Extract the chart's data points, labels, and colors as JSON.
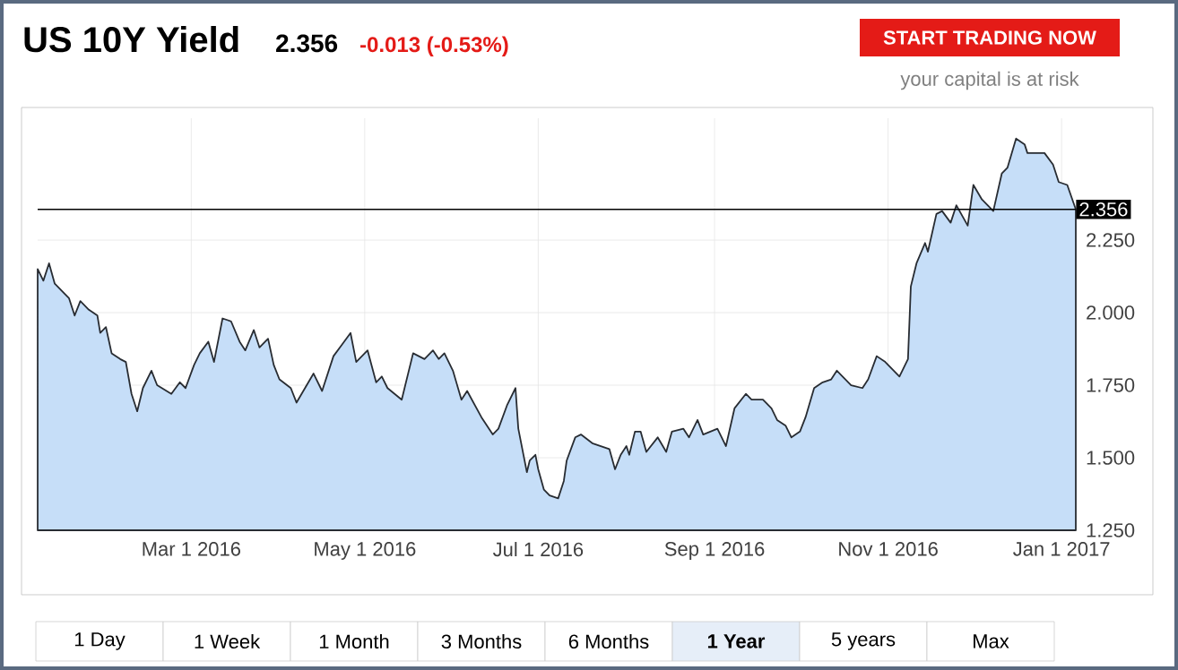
{
  "chart_data": {
    "type": "area",
    "title": "US 10Y Yield",
    "subtitle": "2.356",
    "annotations": [
      "-0.013 (-0.53%)",
      "START TRADING NOW",
      "your capital is at risk",
      "1 Day",
      "1 Week",
      "1 Month",
      "3 Months",
      "6 Months",
      "1 Year",
      "5 years",
      "Max"
    ],
    "color": "#c6def8",
    "grid": true,
    "x": [
      "2016-01-07",
      "2016-01-09",
      "2016-01-11",
      "2016-01-13",
      "2016-01-15",
      "2016-01-18",
      "2016-01-20",
      "2016-01-22",
      "2016-01-25",
      "2016-01-28",
      "2016-01-29",
      "2016-01-31",
      "2016-02-02",
      "2016-02-05",
      "2016-02-07",
      "2016-02-09",
      "2016-02-11",
      "2016-02-13",
      "2016-02-16",
      "2016-02-18",
      "2016-02-23",
      "2016-02-26",
      "2016-02-28",
      "2016-03-02",
      "2016-03-04",
      "2016-03-07",
      "2016-03-09",
      "2016-03-12",
      "2016-03-15",
      "2016-03-18",
      "2016-03-20",
      "2016-03-23",
      "2016-03-25",
      "2016-03-28",
      "2016-03-30",
      "2016-04-01",
      "2016-04-05",
      "2016-04-07",
      "2016-04-10",
      "2016-04-13",
      "2016-04-16",
      "2016-04-20",
      "2016-04-23",
      "2016-04-26",
      "2016-04-28",
      "2016-05-02",
      "2016-05-05",
      "2016-05-07",
      "2016-05-09",
      "2016-05-14",
      "2016-05-15",
      "2016-05-18",
      "2016-05-22",
      "2016-05-25",
      "2016-05-27",
      "2016-05-29",
      "2016-06-01",
      "2016-06-04",
      "2016-06-06",
      "2016-06-11",
      "2016-06-15",
      "2016-06-17",
      "2016-06-20",
      "2016-06-23",
      "2016-06-24",
      "2016-06-27",
      "2016-06-28",
      "2016-06-30",
      "2016-07-01",
      "2016-07-03",
      "2016-07-05",
      "2016-07-08",
      "2016-07-10",
      "2016-07-11",
      "2016-07-14",
      "2016-07-16",
      "2016-07-20",
      "2016-07-26",
      "2016-07-28",
      "2016-07-30",
      "2016-08-01",
      "2016-08-02",
      "2016-08-04",
      "2016-08-06",
      "2016-08-08",
      "2016-08-12",
      "2016-08-15",
      "2016-08-17",
      "2016-08-21",
      "2016-08-23",
      "2016-08-26",
      "2016-08-28",
      "2016-09-02",
      "2016-09-05",
      "2016-09-08",
      "2016-09-12",
      "2016-09-14",
      "2016-09-18",
      "2016-09-21",
      "2016-09-23",
      "2016-09-26",
      "2016-09-28",
      "2016-10-01",
      "2016-10-03",
      "2016-10-06",
      "2016-10-09",
      "2016-10-12",
      "2016-10-14",
      "2016-10-19",
      "2016-10-23",
      "2016-10-25",
      "2016-10-28",
      "2016-10-31",
      "2016-11-05",
      "2016-11-08",
      "2016-11-09",
      "2016-11-11",
      "2016-11-14",
      "2016-11-15",
      "2016-11-18",
      "2016-11-20",
      "2016-11-23",
      "2016-11-25",
      "2016-11-29",
      "2016-12-01",
      "2016-12-04",
      "2016-12-08",
      "2016-12-11",
      "2016-12-13",
      "2016-12-16",
      "2016-12-19",
      "2016-12-20",
      "2016-12-26",
      "2016-12-29",
      "2016-12-31",
      "2017-01-03",
      "2017-01-06"
    ],
    "values": [
      2.15,
      2.11,
      2.17,
      2.1,
      2.08,
      2.05,
      1.99,
      2.04,
      2.01,
      1.99,
      1.93,
      1.95,
      1.86,
      1.84,
      1.83,
      1.72,
      1.66,
      1.74,
      1.8,
      1.75,
      1.72,
      1.76,
      1.74,
      1.82,
      1.86,
      1.9,
      1.83,
      1.98,
      1.97,
      1.9,
      1.87,
      1.94,
      1.88,
      1.91,
      1.82,
      1.77,
      1.74,
      1.69,
      1.74,
      1.79,
      1.73,
      1.85,
      1.89,
      1.93,
      1.83,
      1.87,
      1.76,
      1.78,
      1.74,
      1.7,
      1.74,
      1.86,
      1.84,
      1.87,
      1.84,
      1.86,
      1.8,
      1.7,
      1.73,
      1.64,
      1.58,
      1.6,
      1.68,
      1.74,
      1.6,
      1.45,
      1.49,
      1.51,
      1.46,
      1.39,
      1.37,
      1.36,
      1.42,
      1.49,
      1.57,
      1.58,
      1.55,
      1.53,
      1.46,
      1.51,
      1.54,
      1.51,
      1.59,
      1.59,
      1.52,
      1.57,
      1.52,
      1.59,
      1.6,
      1.57,
      1.63,
      1.58,
      1.6,
      1.54,
      1.67,
      1.72,
      1.7,
      1.7,
      1.67,
      1.63,
      1.61,
      1.57,
      1.59,
      1.64,
      1.74,
      1.76,
      1.77,
      1.8,
      1.75,
      1.74,
      1.77,
      1.85,
      1.83,
      1.78,
      1.84,
      2.09,
      2.17,
      2.24,
      2.21,
      2.34,
      2.35,
      2.31,
      2.37,
      2.3,
      2.44,
      2.39,
      2.35,
      2.48,
      2.5,
      2.6,
      2.58,
      2.55,
      2.55,
      2.51,
      2.45,
      2.44,
      2.356
    ],
    "xlim": [
      "2016-01-07",
      "2017-01-06"
    ],
    "ylim": [
      1.25,
      2.67
    ],
    "xticks": [
      {
        "value": "2016-03-01",
        "label": "Mar 1 2016"
      },
      {
        "value": "2016-05-01",
        "label": "May 1 2016"
      },
      {
        "value": "2016-07-01",
        "label": "Jul 1 2016"
      },
      {
        "value": "2016-09-01",
        "label": "Sep 1 2016"
      },
      {
        "value": "2016-11-01",
        "label": "Nov 1 2016"
      },
      {
        "value": "2017-01-01",
        "label": "Jan 1 2017"
      }
    ],
    "yticks": [
      {
        "value": 1.25,
        "label": "1.250"
      },
      {
        "value": 1.5,
        "label": "1.500"
      },
      {
        "value": 1.75,
        "label": "1.750"
      },
      {
        "value": 2.0,
        "label": "2.000"
      },
      {
        "value": 2.25,
        "label": "2.250"
      }
    ],
    "ref_lines": [
      {
        "axis": "y",
        "value": 2.356,
        "label": "2.356",
        "color": "#000000"
      }
    ]
  }
}
